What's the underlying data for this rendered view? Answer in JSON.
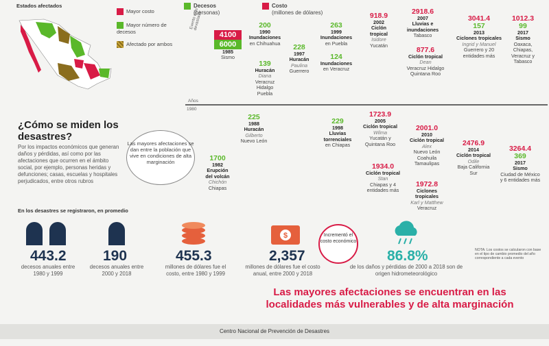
{
  "map": {
    "title": "Estados afectados",
    "legend": [
      {
        "label": "Mayor costo",
        "color": "#d81b46"
      },
      {
        "label": "Mayor número de decesos",
        "color": "#5ab82a"
      },
      {
        "label": "Afectado por ambos",
        "color": "#a88a2c"
      }
    ]
  },
  "header": {
    "deaths_label": "Decesos",
    "deaths_unit": "(personas)",
    "cost_label": "Costo",
    "cost_unit": "(millones de dólares)"
  },
  "axis": {
    "side_label": "Evento más devastador",
    "years_label": "Años",
    "year_start": "1980"
  },
  "intro": {
    "title": "¿Cómo se miden los desastres?",
    "body": "Por los impactos económicos que generan daños y pérdidas, así como por las afectaciones que ocurren en el ámbito social, por ejemplo, personas heridas y defunciones; casas, escuelas y hospitales perjudicados, entre otros rubros"
  },
  "bubble": "Las mayores afectaciones se dan entre la población que vive en condiciones de alta marginación",
  "events": [
    {
      "cost": "4100",
      "deaths": "6000",
      "year": "1985",
      "name": "Sismo",
      "place": ""
    },
    {
      "deaths": "200",
      "year": "1990",
      "name": "Inundaciones",
      "place": "en Chihuahua"
    },
    {
      "deaths": "139",
      "name": "Huracán",
      "storm": "Diana",
      "place": "Veracruz Hidalgo Puebla"
    },
    {
      "deaths": "228",
      "year": "1997",
      "name": "Huracán",
      "storm": "Paulina",
      "place": "Guerrero"
    },
    {
      "deaths": "263",
      "year": "1999",
      "name": "Inundaciones",
      "place": "en Puebla"
    },
    {
      "deaths": "124",
      "name": "Inundaciones",
      "place": "en Veracruz"
    },
    {
      "cost": "918.9",
      "year": "2002",
      "name": "Ciclón tropical",
      "storm": "Isidore",
      "place": "Yucatán"
    },
    {
      "cost": "2918.6",
      "year": "2007",
      "name": "Lluvias e inundaciones",
      "place": "Tabasco"
    },
    {
      "cost": "877.6",
      "name": "Ciclón tropical",
      "storm": "Dean",
      "place": "Veracruz Hidalgo Quintana Roo"
    },
    {
      "cost": "3041.4",
      "deaths": "157",
      "year": "2013",
      "name": "Ciclones tropicales",
      "storm": "Ingrid y Manuel",
      "place": "Guerrero y 20 entidades más"
    },
    {
      "cost": "1012.3",
      "deaths": "99",
      "year": "2017",
      "name": "Sismo",
      "place": "Oaxaca, Chiapas, Veracruz y Tabasco"
    },
    {
      "deaths": "225",
      "year": "1988",
      "name": "Huracán",
      "storm": "Gilberto",
      "place": "Nuevo León"
    },
    {
      "deaths": "1700",
      "year": "1982",
      "name": "Erupción del volcán",
      "storm": "Chichón",
      "place": "Chiapas"
    },
    {
      "deaths": "229",
      "year": "1998",
      "name": "Lluvias torrenciales",
      "place": "en Chiapas"
    },
    {
      "cost": "1723.9",
      "year": "2005",
      "name": "Ciclón tropical",
      "storm": "Wilma",
      "place": "Yucatán y Quintana Roo"
    },
    {
      "cost": "1934.0",
      "name": "Ciclón tropical",
      "storm": "Stan",
      "place": "Chiapas y 4 entidades más"
    },
    {
      "cost": "2001.0",
      "year": "2010",
      "name": "Ciclón tropical",
      "storm": "Alex",
      "place": "Nuevo León Coahuila Tamaulipas"
    },
    {
      "cost": "1972.8",
      "name": "Ciclones tropicales",
      "storm": "Karl y Matthew",
      "place": "Veracruz"
    },
    {
      "cost": "2476.9",
      "year": "2014",
      "name": "Ciclón tropical",
      "storm": "Odile",
      "place": "Baja California Sur"
    },
    {
      "cost": "3264.4",
      "deaths": "369",
      "year": "2017",
      "name": "Sismo",
      "place": "Ciudad de México y 6 entidades más"
    }
  ],
  "stats_title": "En los desastres se registraron, en promedio",
  "stats": [
    {
      "value": "443.2",
      "label": "decesos anuales entre 1980 y 1999"
    },
    {
      "value": "190",
      "label": "decesos anuales entre 2000 y 2018"
    },
    {
      "value": "455.3",
      "label": "millones de dólares fue el costo, entre 1980 y 1999"
    },
    {
      "value": "2,357",
      "label": "millones de dólares fue el costo anual, entre 2000 y 2018"
    },
    {
      "value": "86.8%",
      "label": "de los daños y pérdidas de 2000 a 2018 son de origen hidrometeorológico"
    }
  ],
  "cost_increase": "Incrementó el costo económico",
  "note": "NOTA: Los costos se calcularon con base en el tipo de cambio promedio del año correspondiente a cada evento",
  "banner": "Las mayores afectaciones se encuentran en las localidades más vulnerables y de alta marginación",
  "footer": "Centro Nacional de Prevención de Desastres"
}
